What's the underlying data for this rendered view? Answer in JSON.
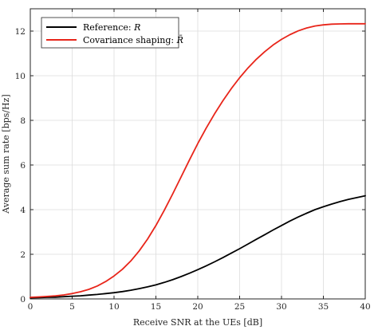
{
  "chart_data": {
    "type": "line",
    "title": "",
    "xlabel": "Receive SNR at the UEs [dB]",
    "ylabel": "Average sum rate [bps/Hz]",
    "xlim": [
      0,
      40
    ],
    "ylim": [
      0,
      13
    ],
    "xticks": [
      0,
      5,
      10,
      15,
      20,
      25,
      30,
      35,
      40
    ],
    "yticks": [
      0,
      2,
      4,
      6,
      8,
      10,
      12
    ],
    "grid": true,
    "legend_position": "top-left",
    "x": [
      0,
      1,
      2,
      3,
      4,
      5,
      6,
      7,
      8,
      9,
      10,
      11,
      12,
      13,
      14,
      15,
      16,
      17,
      18,
      19,
      20,
      21,
      22,
      23,
      24,
      25,
      26,
      27,
      28,
      29,
      30,
      31,
      32,
      33,
      34,
      35,
      36,
      37,
      38,
      39,
      40
    ],
    "series": [
      {
        "name": "Reference: R",
        "legend_main": "Reference: ",
        "legend_math": "R",
        "color": "#000000",
        "values": [
          0.05,
          0.06,
          0.07,
          0.08,
          0.1,
          0.12,
          0.14,
          0.17,
          0.2,
          0.24,
          0.28,
          0.33,
          0.39,
          0.46,
          0.54,
          0.63,
          0.74,
          0.86,
          1.0,
          1.15,
          1.31,
          1.48,
          1.66,
          1.85,
          2.05,
          2.25,
          2.46,
          2.67,
          2.88,
          3.09,
          3.29,
          3.49,
          3.67,
          3.84,
          4.0,
          4.13,
          4.25,
          4.36,
          4.46,
          4.54,
          4.62
        ]
      },
      {
        "name": "Covariance shaping: R̄",
        "legend_main": "Covariance shaping: ",
        "legend_math": "R̄",
        "color": "#e8251a",
        "values": [
          0.07,
          0.09,
          0.11,
          0.14,
          0.18,
          0.24,
          0.32,
          0.43,
          0.58,
          0.78,
          1.03,
          1.33,
          1.7,
          2.15,
          2.68,
          3.29,
          3.97,
          4.7,
          5.46,
          6.22,
          6.96,
          7.65,
          8.29,
          8.88,
          9.42,
          9.91,
          10.35,
          10.74,
          11.08,
          11.38,
          11.63,
          11.84,
          12.01,
          12.14,
          12.23,
          12.28,
          12.31,
          12.32,
          12.33,
          12.33,
          12.33
        ]
      }
    ]
  }
}
